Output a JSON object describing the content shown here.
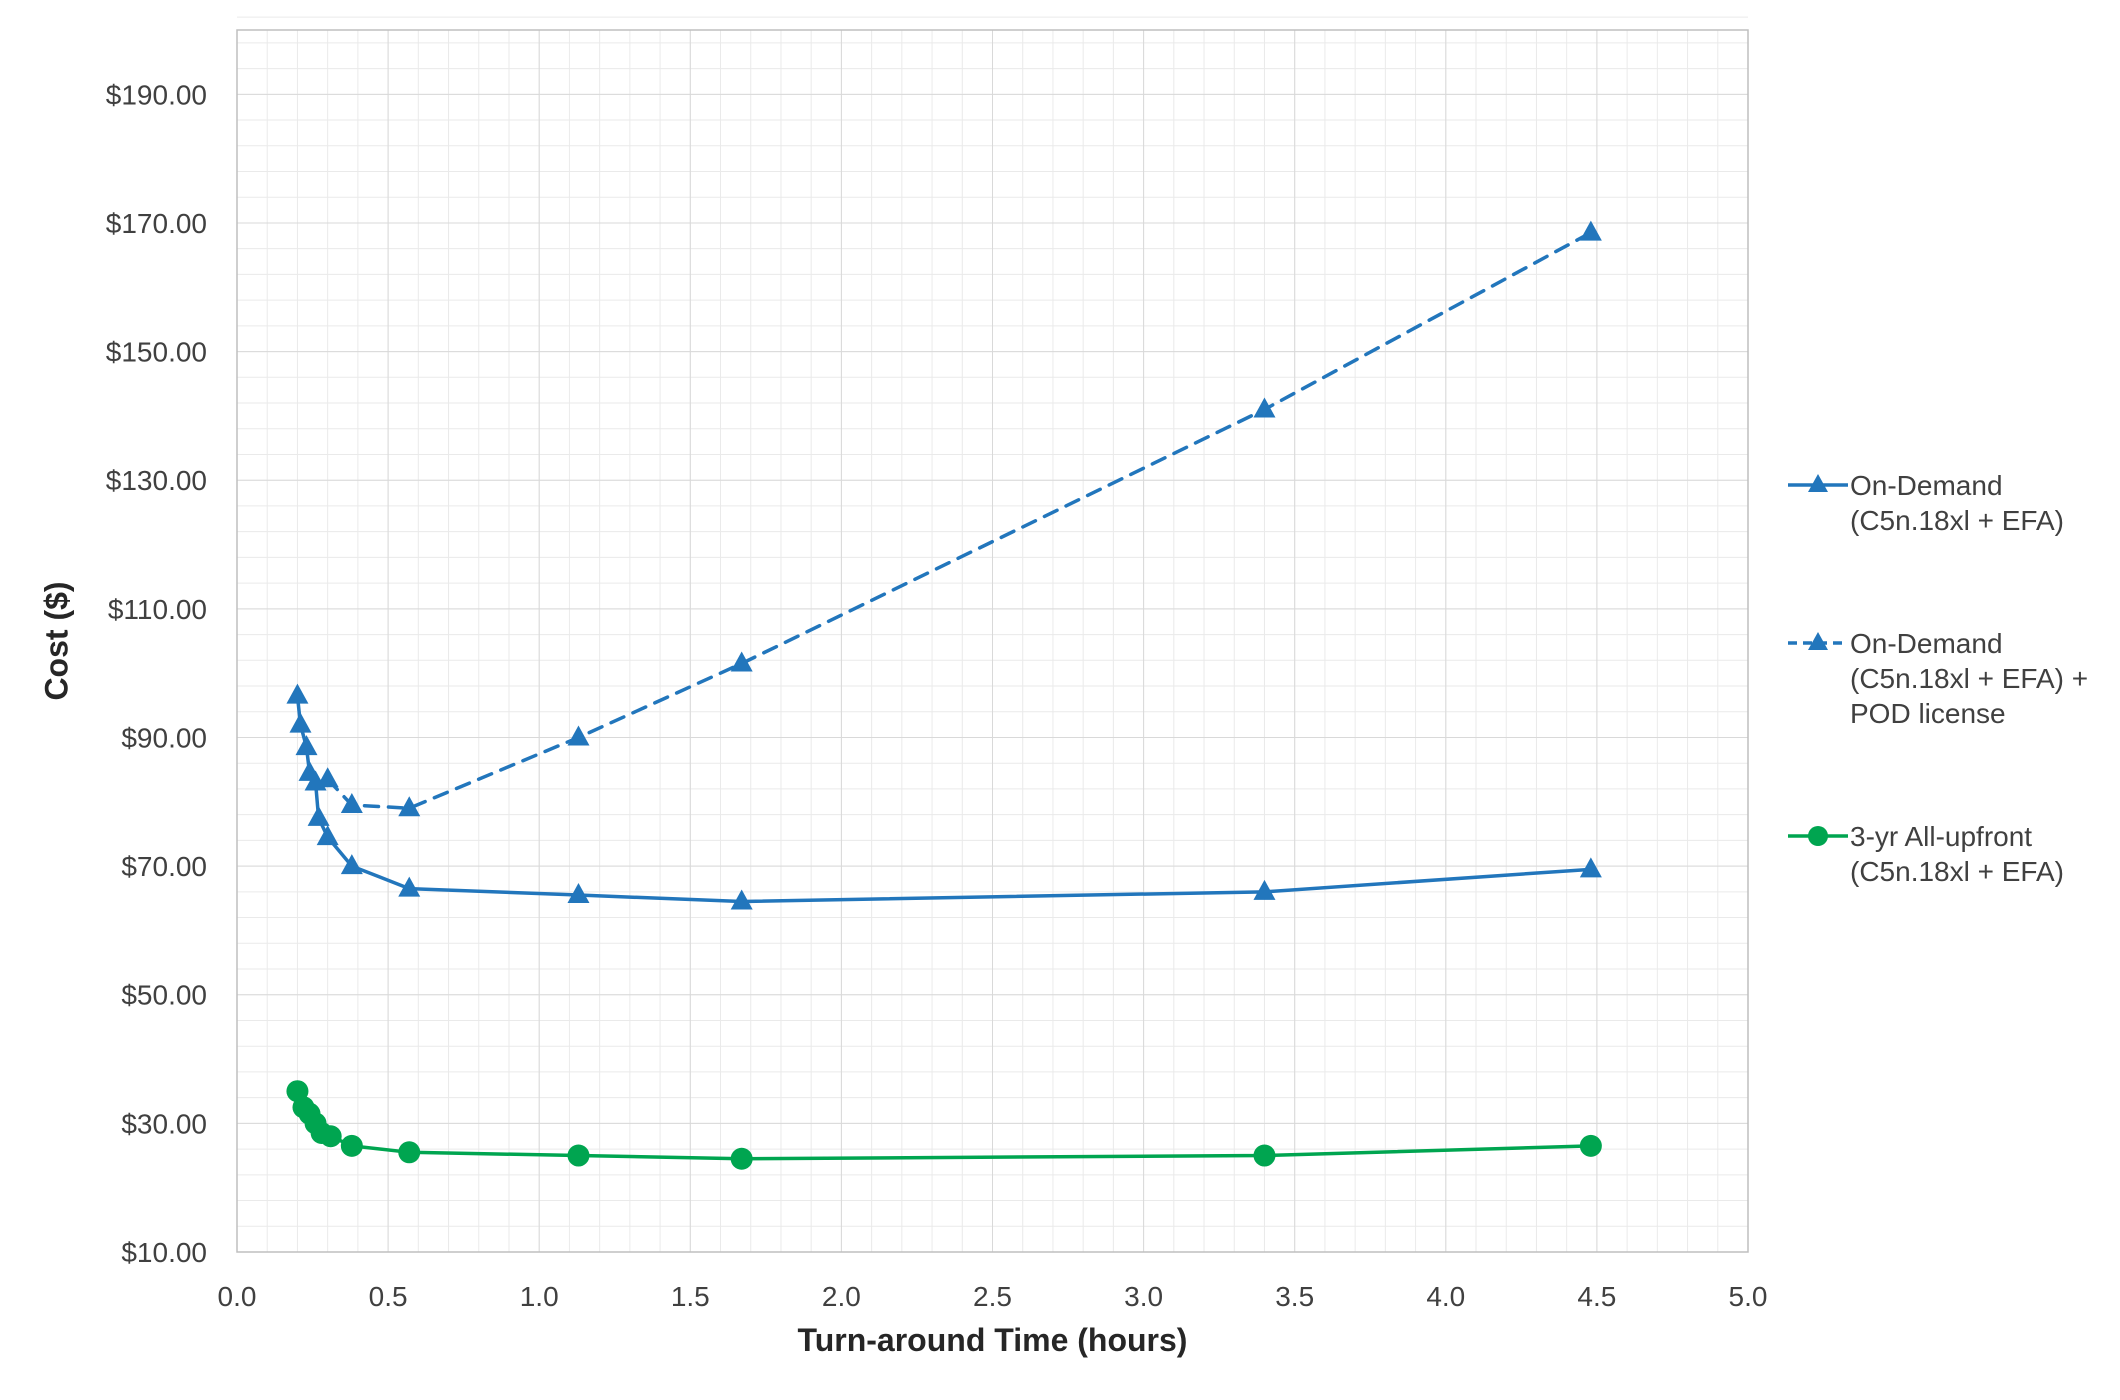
{
  "accent_colors": {
    "blue": "#2276BC",
    "green": "#00A550",
    "grid_minor": "#EAEAEA",
    "grid_major": "#D9D9D9",
    "border": "#BFBFBF",
    "axis_text": "#404040"
  },
  "chart_data": {
    "type": "line",
    "xlabel": "Turn-around Time (hours)",
    "ylabel": "Cost ($)",
    "xlim": [
      0,
      5
    ],
    "ylim": [
      10,
      200
    ],
    "x_major": 0.5,
    "x_minor": 0.1,
    "y_major": 20,
    "y_minor": 4,
    "grid": true,
    "legend_position": "right",
    "x_tick_labels": [
      "0.0",
      "0.5",
      "1.0",
      "1.5",
      "2.0",
      "2.5",
      "3.0",
      "3.5",
      "4.0",
      "4.5",
      "5.0"
    ],
    "y_tick_labels": [
      "$10.00",
      "$30.00",
      "$50.00",
      "$70.00",
      "$90.00",
      "$110.00",
      "$130.00",
      "$150.00",
      "$170.00",
      "$190.00"
    ],
    "series": [
      {
        "name": "On-Demand (C5n.18xl + EFA)",
        "color": "blue",
        "line": "solid",
        "marker": "triangle",
        "points": [
          [
            0.2,
            96.5
          ],
          [
            0.21,
            92.0
          ],
          [
            0.23,
            88.5
          ],
          [
            0.24,
            84.5
          ],
          [
            0.26,
            83.0
          ],
          [
            0.27,
            77.5
          ],
          [
            0.3,
            74.5
          ],
          [
            0.38,
            70.0
          ],
          [
            0.57,
            66.5
          ],
          [
            1.13,
            65.5
          ],
          [
            1.67,
            64.5
          ],
          [
            3.4,
            66.0
          ],
          [
            4.48,
            69.5
          ]
        ]
      },
      {
        "name": "On-Demand (C5n.18xl + EFA) + POD license",
        "color": "blue",
        "line": "dashed",
        "marker": "triangle",
        "points": [
          [
            0.3,
            83.5
          ],
          [
            0.38,
            79.5
          ],
          [
            0.57,
            79.0
          ],
          [
            1.13,
            90.0
          ],
          [
            1.67,
            101.5
          ],
          [
            3.4,
            141.0
          ],
          [
            4.48,
            168.5
          ]
        ]
      },
      {
        "name": "3-yr All-upfront (C5n.18xl + EFA)",
        "color": "green",
        "line": "solid",
        "marker": "circle",
        "points": [
          [
            0.2,
            35.0
          ],
          [
            0.22,
            32.5
          ],
          [
            0.24,
            31.5
          ],
          [
            0.26,
            30.0
          ],
          [
            0.28,
            28.5
          ],
          [
            0.31,
            28.0
          ],
          [
            0.38,
            26.5
          ],
          [
            0.57,
            25.5
          ],
          [
            1.13,
            25.0
          ],
          [
            1.67,
            24.5
          ],
          [
            3.4,
            25.0
          ],
          [
            4.48,
            26.5
          ]
        ]
      }
    ]
  },
  "legend": {
    "items": [
      {
        "label": "On-Demand\n(C5n.18xl + EFA)",
        "swatch": "blue-solid-triangle"
      },
      {
        "label": "On-Demand\n(C5n.18xl + EFA) +\nPOD license",
        "swatch": "blue-dashed-triangle"
      },
      {
        "label": "3-yr All-upfront\n(C5n.18xl + EFA)",
        "swatch": "green-solid-circle"
      }
    ]
  }
}
